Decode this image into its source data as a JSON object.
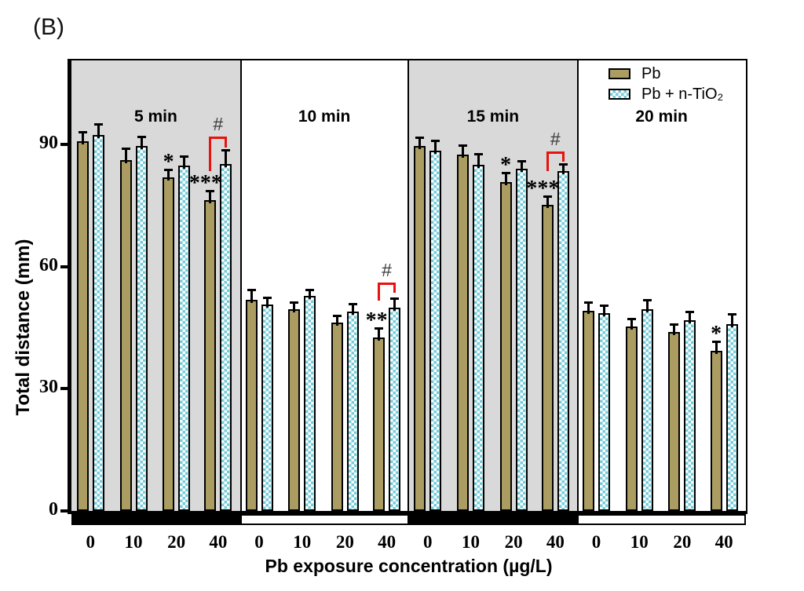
{
  "figure_label": "(B)",
  "colors": {
    "pb_bar": "#ab9d62",
    "tio2_check": "#74ccd9",
    "shaded_panel": "#d9d9d9",
    "bracket_red": "#e8120e"
  },
  "legend": [
    {
      "label": "Pb",
      "swatch": "pb"
    },
    {
      "label": "Pb + n-TiO₂",
      "swatch": "tio2"
    }
  ],
  "chart_data": {
    "type": "bar",
    "title": "(B)",
    "ylabel": "Total distance (mm)",
    "xlabel": "Pb exposure concentration (µg/L)",
    "ylim": [
      0,
      110
    ],
    "yticks": [
      0,
      30,
      60,
      90
    ],
    "categories": [
      "0",
      "10",
      "20",
      "40"
    ],
    "series": [
      "Pb",
      "Pb + n-TiO₂"
    ],
    "legend_position": "top-right",
    "grid": false,
    "panels": [
      {
        "label": "5 min",
        "shaded": true,
        "band": "dark",
        "pb": {
          "values": [
            90.8,
            86.2,
            81.8,
            76.3
          ],
          "errors": [
            2.3,
            2.9,
            2.1,
            2.3
          ],
          "sig": [
            "",
            "",
            "*",
            "***"
          ]
        },
        "tio2": {
          "values": [
            92.3,
            89.6,
            84.8,
            85.1
          ],
          "errors": [
            2.6,
            2.3,
            2.3,
            3.5
          ]
        },
        "bracket": {
          "group": 3,
          "label": "#",
          "top": 92.0,
          "left_end": 83.5,
          "right_end": 89.2
        }
      },
      {
        "label": "10 min",
        "shaded": false,
        "band": "light",
        "pb": {
          "values": [
            51.9,
            49.5,
            46.3,
            42.6
          ],
          "errors": [
            2.4,
            1.8,
            1.6,
            2.3
          ],
          "sig": [
            "",
            "",
            "",
            "**"
          ]
        },
        "tio2": {
          "values": [
            50.6,
            52.7,
            49.0,
            49.9
          ],
          "errors": [
            1.9,
            1.6,
            1.8,
            2.3
          ]
        },
        "bracket": {
          "group": 3,
          "label": "#",
          "top": 56.1,
          "left_end": 51.6,
          "right_end": 53.6
        }
      },
      {
        "label": "15 min",
        "shaded": true,
        "band": "dark",
        "pb": {
          "values": [
            89.6,
            87.4,
            80.7,
            75.2
          ],
          "errors": [
            2.2,
            2.4,
            2.4,
            2.0
          ],
          "sig": [
            "",
            "",
            "*",
            "***"
          ]
        },
        "tio2": {
          "values": [
            88.5,
            85.0,
            84.0,
            83.4
          ],
          "errors": [
            2.4,
            2.7,
            2.0,
            1.8
          ]
        },
        "bracket": {
          "group": 3,
          "label": "#",
          "top": 88.3,
          "left_end": 83.4,
          "right_end": 85.8
        }
      },
      {
        "label": "20 min",
        "shaded": false,
        "band": "light",
        "pb": {
          "values": [
            49.2,
            45.3,
            44.0,
            39.3
          ],
          "errors": [
            2.0,
            1.9,
            1.8,
            2.3
          ],
          "sig": [
            "",
            "",
            "",
            "*"
          ]
        },
        "tio2": {
          "values": [
            48.6,
            49.6,
            46.8,
            45.9
          ],
          "errors": [
            1.8,
            2.2,
            2.1,
            2.4
          ]
        },
        "bracket": null
      }
    ]
  }
}
